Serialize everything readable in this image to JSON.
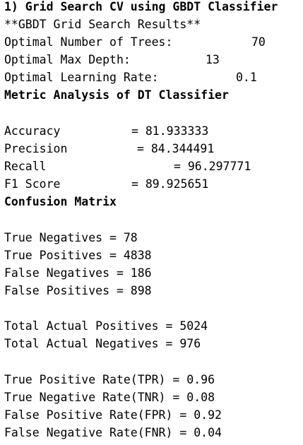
{
  "header": {
    "title": "1) Grid Search CV using GBDT Classifier",
    "results_heading": "**GBDT Grid Search Results**"
  },
  "grid_search": {
    "trees_label": "Optimal Number of Trees:",
    "trees_value": "70",
    "depth_label": "Optimal Max Depth:",
    "depth_value": "13",
    "lr_label": "Optimal Learning Rate:",
    "lr_value": "0.1"
  },
  "metrics": {
    "heading": "Metric Analysis of DT Classifier",
    "accuracy_label": "Accuracy",
    "accuracy_value": "= 81.933333",
    "precision_label": "Precision",
    "precision_value": "= 84.344491",
    "recall_label": "Recall",
    "recall_value": "= 96.297771",
    "f1_label": "F1 Score",
    "f1_value": "= 89.925651"
  },
  "confusion": {
    "heading": "Confusion Matrix",
    "tn": "True Negatives = 78",
    "tp": "True Positives = 4838",
    "fn": "False Negatives = 186",
    "fp": "False Positives = 898"
  },
  "totals": {
    "positives": "Total Actual Positives = 5024",
    "negatives": "Total Actual Negatives = 976"
  },
  "rates": {
    "tpr": "True Positive Rate(TPR) = 0.96",
    "tnr": "True Negative Rate(TNR) = 0.08",
    "fpr": "False Positive Rate(FPR) = 0.92",
    "fnr": "False Negative Rate(FNR) = 0.04"
  }
}
